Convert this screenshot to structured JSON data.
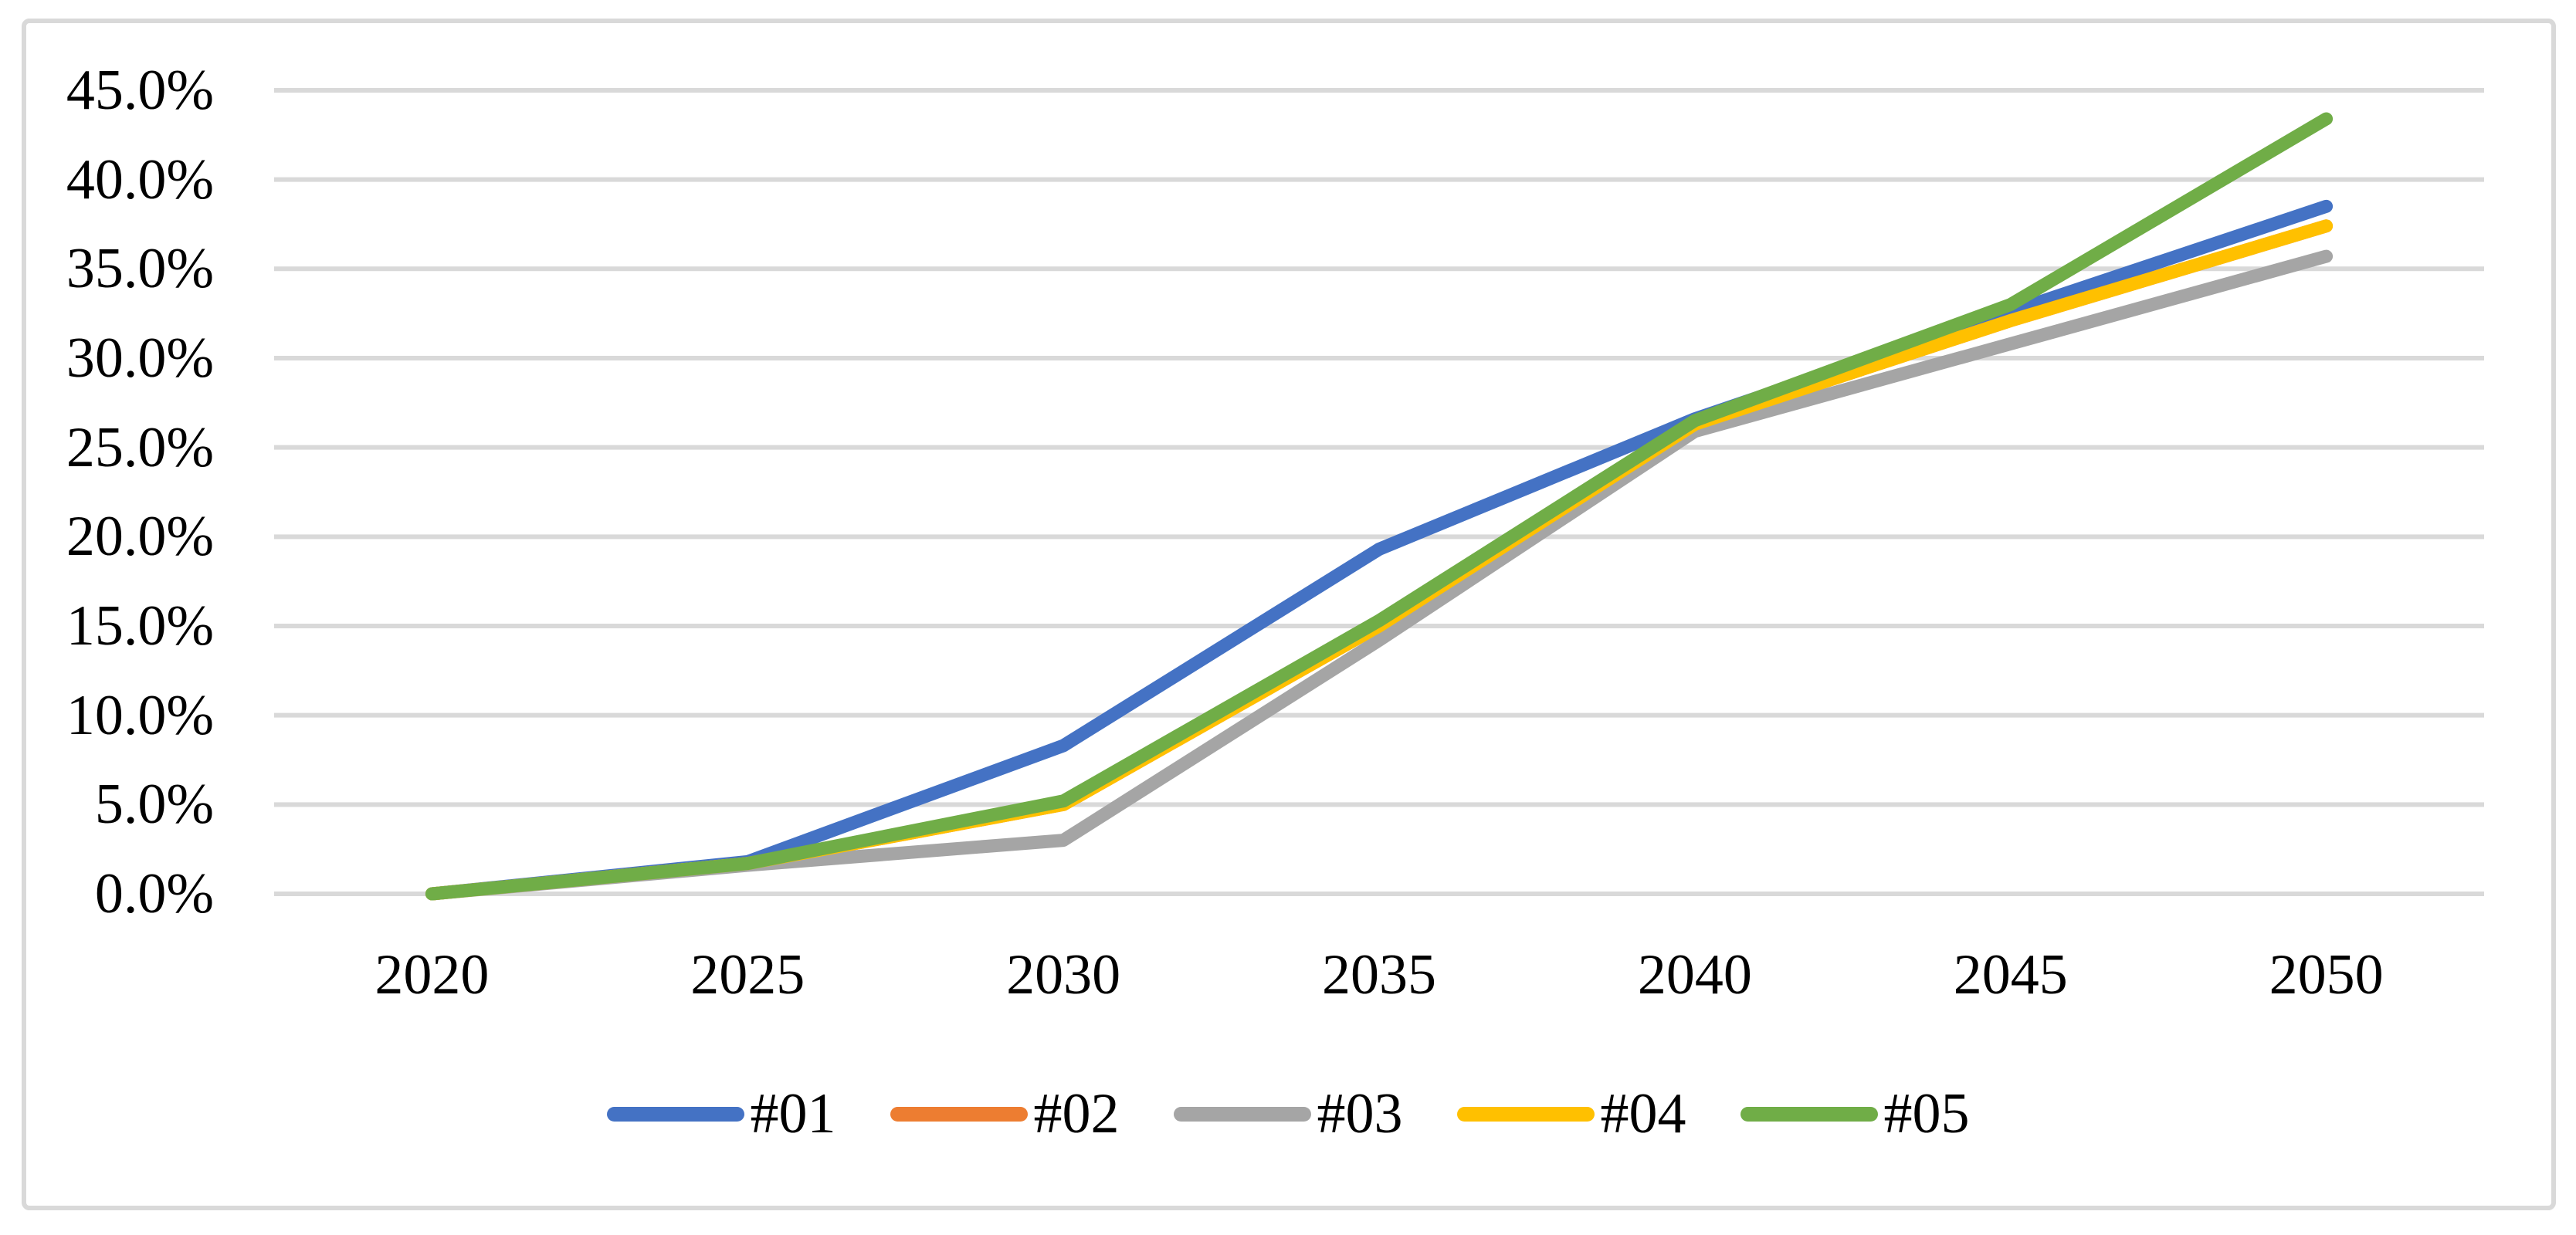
{
  "chart_data": {
    "type": "line",
    "title": "",
    "xlabel": "",
    "ylabel": "",
    "categories": [
      "2020",
      "2025",
      "2030",
      "2035",
      "2040",
      "2045",
      "2050"
    ],
    "series": [
      {
        "name": "#01",
        "color": "#4472C4",
        "values": [
          0.0,
          1.8,
          8.3,
          19.3,
          26.6,
          32.6,
          38.5
        ]
      },
      {
        "name": "#02",
        "color": "#ED7D31",
        "values": [
          0.0,
          1.7,
          5.0,
          15.0,
          26.3,
          32.1,
          37.4
        ]
      },
      {
        "name": "#03",
        "color": "#A5A5A5",
        "values": [
          0.0,
          1.6,
          3.0,
          14.2,
          25.9,
          30.8,
          35.7
        ]
      },
      {
        "name": "#04",
        "color": "#FFC000",
        "values": [
          0.0,
          1.7,
          5.0,
          15.0,
          26.3,
          32.1,
          37.4
        ]
      },
      {
        "name": "#05",
        "color": "#70AD47",
        "values": [
          0.0,
          1.7,
          5.2,
          15.3,
          26.5,
          33.0,
          43.4
        ]
      }
    ],
    "ylim": [
      0,
      45
    ],
    "ytick_step": 5,
    "ytick_labels": [
      "0.0%",
      "5.0%",
      "10.0%",
      "15.0%",
      "20.0%",
      "25.0%",
      "30.0%",
      "35.0%",
      "40.0%",
      "45.0%"
    ],
    "grid": true,
    "gridline_color": "#D9D9D9",
    "frame_border_color": "#D9D9D9",
    "text_color": "#000000",
    "legend_position": "bottom-center",
    "legend_entries": [
      "#01",
      "#02",
      "#03",
      "#04",
      "#05"
    ]
  }
}
